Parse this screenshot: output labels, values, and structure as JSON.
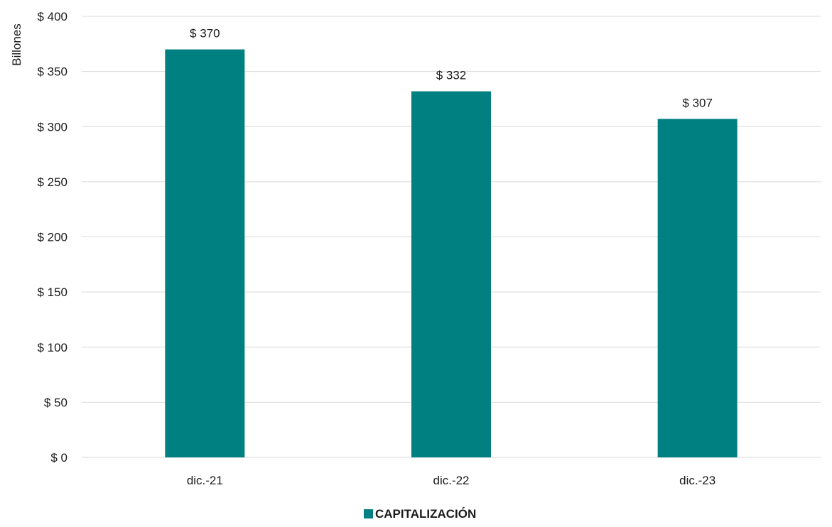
{
  "chart_data": {
    "type": "bar",
    "categories": [
      "dic.-21",
      "dic.-22",
      "dic.-23"
    ],
    "series": [
      {
        "name": "CAPITALIZACIÓN",
        "values": [
          370,
          332,
          307
        ],
        "color": "#008080"
      }
    ],
    "data_labels": [
      "$ 370",
      "$ 332",
      "$ 307"
    ],
    "ylabel": "Billones",
    "ylim": [
      0,
      400
    ],
    "yticks": [
      0,
      50,
      100,
      150,
      200,
      250,
      300,
      350,
      400
    ],
    "ytick_labels": [
      "$ 0",
      "$ 50",
      "$ 100",
      "$ 150",
      "$ 200",
      "$ 250",
      "$ 300",
      "$ 350",
      "$ 400"
    ],
    "grid": true,
    "grid_color": "#d9d9d9",
    "legend_position": "bottom"
  }
}
